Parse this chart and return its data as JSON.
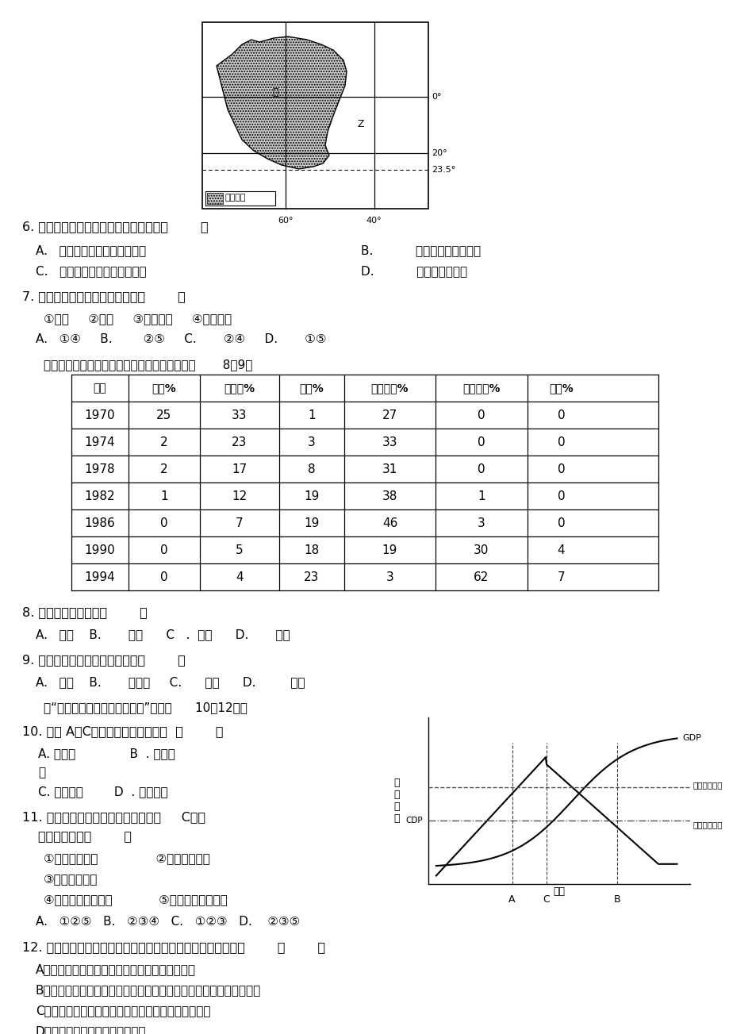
{
  "bg_color": "#ffffff",
  "table_headers": [
    "年份",
    "日本%",
    "意大利%",
    "韩国%",
    "中国台湾%",
    "中国大陆%",
    "印尼%"
  ],
  "table_rows": [
    [
      "1970",
      "25",
      "33",
      "1",
      "27",
      "0",
      "0"
    ],
    [
      "1974",
      "2",
      "23",
      "3",
      "33",
      "0",
      "0"
    ],
    [
      "1978",
      "2",
      "17",
      "8",
      "31",
      "0",
      "0"
    ],
    [
      "1982",
      "1",
      "12",
      "19",
      "38",
      "1",
      "0"
    ],
    [
      "1986",
      "0",
      "7",
      "19",
      "46",
      "3",
      "0"
    ],
    [
      "1990",
      "0",
      "5",
      "18",
      "19",
      "30",
      "4"
    ],
    [
      "1994",
      "0",
      "4",
      "23",
      "3",
      "62",
      "7"
    ]
  ]
}
